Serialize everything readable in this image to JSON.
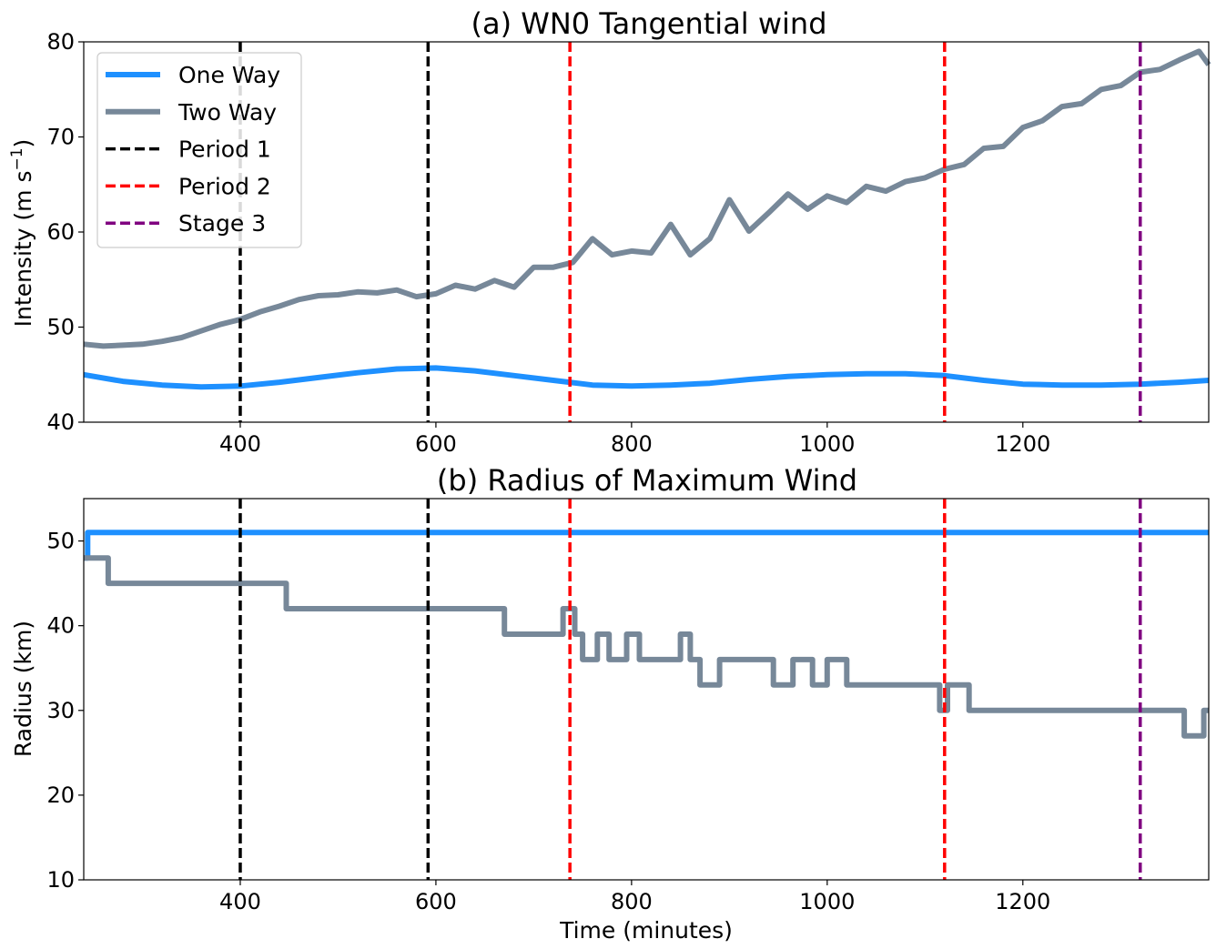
{
  "chart_data": [
    {
      "type": "line",
      "title": "(a) WN0 Tangential wind",
      "ylabel_main": "Intensity (m s",
      "ylabel_sup": "−1",
      "ylabel_close": ")",
      "xlabel": "",
      "xlim": [
        240,
        1390
      ],
      "ylim": [
        40,
        80
      ],
      "xticks": [
        400,
        600,
        800,
        1000,
        1200
      ],
      "yticks": [
        40,
        50,
        60,
        70,
        80
      ],
      "grid": false,
      "legend_position": "top-left",
      "series": [
        {
          "name": "One Way",
          "color": "#1e90ff",
          "x": [
            240,
            280,
            320,
            360,
            400,
            440,
            480,
            520,
            560,
            600,
            640,
            680,
            720,
            760,
            800,
            840,
            880,
            920,
            960,
            1000,
            1040,
            1080,
            1120,
            1160,
            1200,
            1240,
            1280,
            1320,
            1360,
            1390
          ],
          "y": [
            45.0,
            44.3,
            43.9,
            43.7,
            43.8,
            44.2,
            44.7,
            45.2,
            45.6,
            45.7,
            45.4,
            44.9,
            44.4,
            43.9,
            43.8,
            43.9,
            44.1,
            44.5,
            44.8,
            45.0,
            45.1,
            45.1,
            44.9,
            44.4,
            44.0,
            43.9,
            43.9,
            44.0,
            44.2,
            44.4
          ]
        },
        {
          "name": "Two Way",
          "color": "#778899",
          "x": [
            240,
            260,
            280,
            300,
            320,
            340,
            360,
            380,
            400,
            420,
            440,
            460,
            480,
            500,
            520,
            540,
            560,
            580,
            600,
            620,
            640,
            660,
            680,
            700,
            720,
            740,
            760,
            780,
            800,
            820,
            840,
            860,
            880,
            900,
            920,
            940,
            960,
            980,
            1000,
            1020,
            1040,
            1060,
            1080,
            1100,
            1120,
            1140,
            1160,
            1180,
            1200,
            1220,
            1240,
            1260,
            1280,
            1300,
            1320,
            1340,
            1360,
            1380,
            1390
          ],
          "y": [
            48.2,
            48.0,
            48.1,
            48.2,
            48.5,
            48.9,
            49.6,
            50.3,
            50.8,
            51.6,
            52.2,
            52.9,
            53.3,
            53.4,
            53.7,
            53.6,
            53.9,
            53.2,
            53.5,
            54.4,
            54.0,
            54.9,
            54.2,
            56.3,
            56.3,
            56.8,
            59.3,
            57.6,
            58.0,
            57.8,
            60.8,
            57.6,
            59.3,
            63.4,
            60.1,
            62.0,
            64.0,
            62.4,
            63.8,
            63.1,
            64.8,
            64.3,
            65.3,
            65.7,
            66.6,
            67.1,
            68.8,
            69.0,
            71.0,
            71.7,
            73.2,
            73.5,
            75.0,
            75.4,
            76.8,
            77.1,
            78.1,
            79.0,
            77.6
          ]
        }
      ],
      "vlines": [
        {
          "name": "Period 1",
          "x": 400,
          "color": "#000000"
        },
        {
          "name": "",
          "x": 592,
          "color": "#000000"
        },
        {
          "name": "Period 2",
          "x": 737,
          "color": "#ff0000"
        },
        {
          "name": "",
          "x": 1120,
          "color": "#ff0000"
        },
        {
          "name": "Stage 3",
          "x": 1320,
          "color": "#800080"
        }
      ]
    },
    {
      "type": "line",
      "title": "(b) Radius of Maximum Wind",
      "ylabel": "Radius (km)",
      "xlabel": "Time (minutes)",
      "xlim": [
        240,
        1390
      ],
      "ylim": [
        10,
        55
      ],
      "xticks": [
        400,
        600,
        800,
        1000,
        1200
      ],
      "yticks": [
        10,
        20,
        30,
        40,
        50
      ],
      "grid": false,
      "series": [
        {
          "name": "One Way",
          "color": "#1e90ff",
          "step": true,
          "x": [
            240,
            244,
            1390
          ],
          "y": [
            48,
            51,
            51
          ]
        },
        {
          "name": "Two Way",
          "color": "#778899",
          "step": true,
          "x": [
            240,
            265,
            447,
            670,
            730,
            742,
            750,
            765,
            777,
            795,
            808,
            830,
            850,
            860,
            870,
            890,
            910,
            945,
            965,
            985,
            1000,
            1020,
            1115,
            1123,
            1145,
            1365,
            1385,
            1390
          ],
          "y": [
            48,
            45,
            42,
            39,
            42,
            39,
            36,
            39,
            36,
            39,
            36,
            36,
            39,
            36,
            33,
            36,
            36,
            33,
            36,
            33,
            36,
            33,
            30,
            33,
            30,
            27,
            30,
            30
          ]
        }
      ],
      "vlines": [
        {
          "x": 400,
          "color": "#000000"
        },
        {
          "x": 592,
          "color": "#000000"
        },
        {
          "x": 737,
          "color": "#ff0000"
        },
        {
          "x": 1120,
          "color": "#ff0000"
        },
        {
          "x": 1320,
          "color": "#800080"
        }
      ]
    }
  ]
}
